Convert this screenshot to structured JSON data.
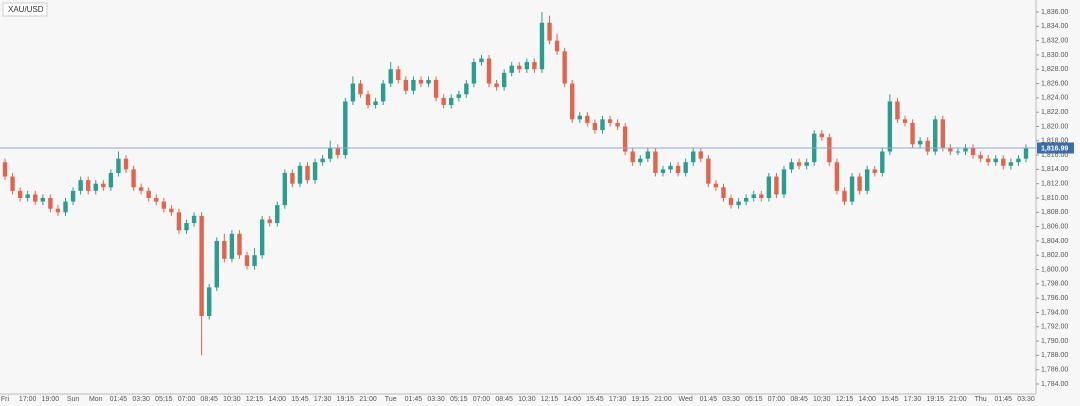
{
  "chart_data": {
    "type": "candlestick",
    "title": "XAU/USD",
    "categories": [
      "Fri",
      null,
      null,
      "17:00",
      null,
      null,
      "19:00",
      null,
      null,
      "Sun",
      null,
      null,
      "Mon",
      null,
      null,
      "01:45",
      null,
      null,
      "03:30",
      null,
      null,
      "05:15",
      null,
      null,
      "07:00",
      null,
      null,
      "08:45",
      null,
      null,
      "10:30",
      null,
      null,
      "12:15",
      null,
      null,
      "14:00",
      null,
      null,
      "15:45",
      null,
      null,
      "17:30",
      null,
      null,
      "19:15",
      null,
      null,
      "21:00",
      null,
      null,
      "Tue",
      null,
      null,
      "01:45",
      null,
      null,
      "03:30",
      null,
      null,
      "05:15",
      null,
      null,
      "07:00",
      null,
      null,
      "08:45",
      null,
      null,
      "10:30",
      null,
      null,
      "12:15",
      null,
      null,
      "14:00",
      null,
      null,
      "15:45",
      null,
      null,
      "17:30",
      null,
      null,
      "19:15",
      null,
      null,
      "21:00",
      null,
      null,
      "Wed",
      null,
      null,
      "01:45",
      null,
      null,
      "03:30",
      null,
      null,
      "05:15",
      null,
      null,
      "07:00",
      null,
      null,
      "08:45",
      null,
      null,
      "10:30",
      null,
      null,
      "12:15",
      null,
      null,
      "14:00",
      null,
      null,
      "15:45",
      null,
      null,
      "17:30",
      null,
      null,
      "19:15",
      null,
      null,
      "21:00",
      null,
      null,
      "Thu",
      null,
      null,
      "01:45",
      null,
      null,
      "03:30"
    ],
    "open": [
      1815,
      1813,
      1811,
      1810,
      1810.5,
      1809.5,
      1810,
      1808.5,
      1808,
      1809.5,
      1811,
      1812.5,
      1811,
      1812,
      1811.5,
      1813.5,
      1815.5,
      1814,
      1811.5,
      1811,
      1810,
      1809.5,
      1808.5,
      1808,
      1805.5,
      1806.5,
      1807.5,
      1793.5,
      1797.5,
      1804,
      1801.5,
      1805,
      1802,
      1800.5,
      1802,
      1807,
      1806.5,
      1809,
      1813.5,
      1812,
      1814.5,
      1812.5,
      1815,
      1815.5,
      1817,
      1816,
      1823.5,
      1826,
      1824.5,
      1823,
      1823.5,
      1826,
      1828,
      1826.5,
      1825,
      1826.5,
      1826,
      1826.5,
      1824,
      1823,
      1824,
      1824.5,
      1826,
      1829,
      1829.5,
      1826,
      1825.5,
      1827.5,
      1828.5,
      1828,
      1829,
      1828,
      1834.5,
      1832,
      1830.5,
      1826,
      1821,
      1821.5,
      1820.5,
      1819.5,
      1821,
      1820.5,
      1820,
      1816.5,
      1815,
      1815.5,
      1816.5,
      1813.5,
      1814,
      1814.5,
      1813.5,
      1815,
      1816.5,
      1815.5,
      1812,
      1811.5,
      1810,
      1809,
      1809.5,
      1810,
      1810.5,
      1810,
      1813,
      1810.5,
      1814,
      1815,
      1814.5,
      1815,
      1819,
      1818.5,
      1815,
      1811,
      1809.5,
      1813,
      1811,
      1814,
      1813.5,
      1816.5,
      1823.5,
      1821,
      1820.5,
      1817.5,
      1818,
      1816.5,
      1821,
      1817,
      1816.5,
      1816.5,
      1817,
      1816,
      1815.5,
      1815,
      1815.5,
      1814.5,
      1815,
      1815.5
    ],
    "high": [
      1815.5,
      1813.5,
      1811.5,
      1811,
      1811,
      1810.5,
      1810.5,
      1809,
      1810,
      1811.5,
      1813,
      1813,
      1812.5,
      1812.5,
      1814,
      1816.5,
      1816,
      1814.5,
      1812,
      1811.5,
      1810.5,
      1810,
      1809,
      1808.5,
      1807,
      1808,
      1808,
      1798,
      1804.5,
      1805,
      1805.5,
      1805.5,
      1802.5,
      1803,
      1807.5,
      1807.5,
      1809.5,
      1814,
      1814,
      1815,
      1815,
      1815.5,
      1816,
      1818,
      1817.5,
      1824,
      1827,
      1826.5,
      1825,
      1824,
      1826.5,
      1829,
      1828.5,
      1827,
      1827,
      1827,
      1827,
      1827,
      1824.5,
      1824.5,
      1825,
      1826.5,
      1829.5,
      1830,
      1830,
      1826.5,
      1828,
      1829,
      1829,
      1829.5,
      1829.5,
      1836,
      1835.5,
      1833,
      1831,
      1826.5,
      1822,
      1822,
      1821,
      1821.5,
      1821.5,
      1821,
      1820.5,
      1817,
      1816,
      1817,
      1817,
      1814.5,
      1815,
      1815,
      1815.5,
      1817,
      1817,
      1816,
      1812.5,
      1812,
      1810.5,
      1810,
      1810.5,
      1811,
      1811,
      1813.5,
      1813.5,
      1814.5,
      1815.5,
      1815.5,
      1815.5,
      1819.5,
      1819.5,
      1819,
      1815.5,
      1811.5,
      1813.5,
      1813.5,
      1814.5,
      1814.5,
      1817,
      1824.5,
      1824,
      1821.5,
      1821,
      1818.5,
      1818.5,
      1821.5,
      1821.5,
      1817.5,
      1817,
      1817.5,
      1817.5,
      1816.5,
      1816,
      1816,
      1816,
      1815.5,
      1816,
      1817.5
    ],
    "low": [
      1812.5,
      1810.5,
      1809.5,
      1809.5,
      1809,
      1809,
      1808,
      1807.5,
      1807.5,
      1809,
      1810.5,
      1810.5,
      1810.5,
      1811,
      1811,
      1813,
      1813.5,
      1811,
      1810.5,
      1809.5,
      1809,
      1808,
      1807.5,
      1805,
      1805,
      1806,
      1788,
      1793,
      1797,
      1801,
      1801,
      1801.5,
      1800,
      1800,
      1801.5,
      1806,
      1806,
      1808.5,
      1811.5,
      1811.5,
      1812,
      1812,
      1814.5,
      1815,
      1815.5,
      1815.5,
      1823,
      1824,
      1822.5,
      1822.5,
      1823,
      1825.5,
      1826,
      1824.5,
      1824.5,
      1825.5,
      1825.5,
      1823.5,
      1822.5,
      1822.5,
      1823.5,
      1824,
      1825.5,
      1828.5,
      1825.5,
      1825,
      1825,
      1827,
      1827.5,
      1827.5,
      1827.5,
      1827.5,
      1831.5,
      1830,
      1825.5,
      1820.5,
      1820.5,
      1820,
      1819,
      1819,
      1820,
      1819.5,
      1816,
      1814.5,
      1814.5,
      1815,
      1813,
      1813,
      1813.5,
      1813,
      1813,
      1814.5,
      1815,
      1811.5,
      1811,
      1809.5,
      1808.5,
      1808.5,
      1809,
      1809.5,
      1809.5,
      1809.5,
      1810,
      1810,
      1813.5,
      1814,
      1814,
      1814.5,
      1818,
      1814.5,
      1810.5,
      1809,
      1809,
      1810.5,
      1810.5,
      1813,
      1813,
      1816,
      1820.5,
      1820,
      1817,
      1817,
      1816,
      1816,
      1816.5,
      1816,
      1816,
      1816,
      1815.5,
      1815,
      1814.5,
      1814.5,
      1814,
      1814,
      1814.5,
      1815
    ],
    "close": [
      1813,
      1811,
      1810,
      1810.5,
      1809.5,
      1810,
      1808.5,
      1808,
      1809.5,
      1811,
      1812.5,
      1811,
      1812,
      1811.5,
      1813.5,
      1815.5,
      1814,
      1811.5,
      1811,
      1810,
      1809.5,
      1808.5,
      1808,
      1805.5,
      1806.5,
      1807.5,
      1793.5,
      1797.5,
      1804,
      1801.5,
      1805,
      1802,
      1800.5,
      1802,
      1807,
      1806.5,
      1809,
      1813.5,
      1812,
      1814.5,
      1812.5,
      1815,
      1815.5,
      1817,
      1816,
      1823.5,
      1826,
      1824.5,
      1823,
      1823.5,
      1826,
      1828,
      1826.5,
      1825,
      1826.5,
      1826,
      1826.5,
      1824,
      1823,
      1824,
      1824.5,
      1826,
      1829,
      1829.5,
      1826,
      1825.5,
      1827.5,
      1828.5,
      1828,
      1829,
      1828,
      1834.5,
      1832,
      1830.5,
      1826,
      1821,
      1821.5,
      1820.5,
      1819.5,
      1821,
      1820.5,
      1820,
      1816.5,
      1815,
      1815.5,
      1816.5,
      1813.5,
      1814,
      1814.5,
      1813.5,
      1815,
      1816.5,
      1815.5,
      1812,
      1811.5,
      1810,
      1809,
      1809.5,
      1810,
      1810.5,
      1810,
      1813,
      1810.5,
      1814,
      1815,
      1814.5,
      1815,
      1819,
      1818.5,
      1815,
      1811,
      1809.5,
      1813,
      1811,
      1814,
      1813.5,
      1816.5,
      1823.5,
      1821,
      1820.5,
      1817.5,
      1818,
      1816.5,
      1821,
      1817,
      1816.5,
      1816.5,
      1817,
      1816,
      1815.5,
      1815,
      1815.5,
      1814.5,
      1815,
      1815.5,
      1816.99
    ],
    "up_color": "#2a9d8f",
    "down_color": "#e0654f",
    "last_price": {
      "value": 1816.99,
      "label": "1,816.99"
    },
    "last_price_color": "#3d6da8",
    "ylim": [
      1782.6,
      1837.68
    ],
    "yticks": [
      {
        "value": 1784,
        "label": "1,784.00"
      },
      {
        "value": 1786,
        "label": "1,786.00"
      },
      {
        "value": 1788,
        "label": "1,788.00"
      },
      {
        "value": 1790,
        "label": "1,790.00"
      },
      {
        "value": 1792,
        "label": "1,792.00"
      },
      {
        "value": 1794,
        "label": "1,794.00"
      },
      {
        "value": 1796,
        "label": "1,796.00"
      },
      {
        "value": 1798,
        "label": "1,798.00"
      },
      {
        "value": 1800,
        "label": "1,800.00"
      },
      {
        "value": 1802,
        "label": "1,802.00"
      },
      {
        "value": 1804,
        "label": "1,804.00"
      },
      {
        "value": 1806,
        "label": "1,806.00"
      },
      {
        "value": 1808,
        "label": "1,808.00"
      },
      {
        "value": 1810,
        "label": "1,810.00"
      },
      {
        "value": 1812,
        "label": "1,812.00"
      },
      {
        "value": 1814,
        "label": "1,814.00"
      },
      {
        "value": 1816,
        "label": "1,816.00"
      },
      {
        "value": 1818,
        "label": "1,818.00"
      },
      {
        "value": 1820,
        "label": "1,820.00"
      },
      {
        "value": 1822,
        "label": "1,822.00"
      },
      {
        "value": 1824,
        "label": "1,824.00"
      },
      {
        "value": 1826,
        "label": "1,826.00"
      },
      {
        "value": 1828,
        "label": "1,828.00"
      },
      {
        "value": 1830,
        "label": "1,830.00"
      },
      {
        "value": 1832,
        "label": "1,832.00"
      },
      {
        "value": 1834,
        "label": "1,834.00"
      },
      {
        "value": 1836,
        "label": "1,836.00"
      }
    ],
    "grid": false
  }
}
